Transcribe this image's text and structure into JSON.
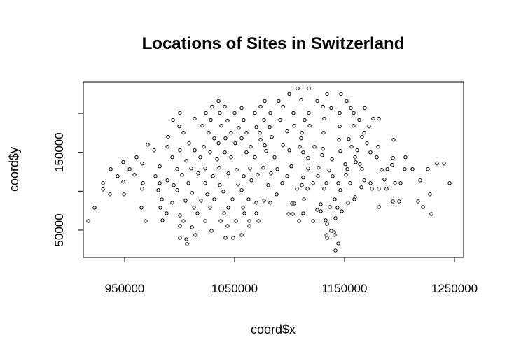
{
  "chart_data": {
    "type": "scatter",
    "title": "Locations of Sites in Switzerland",
    "x_label": "coord$x",
    "y_label": "coord$y",
    "xlim": [
      912400,
      1258300
    ],
    "ylim": [
      14900,
      240500
    ],
    "xticks": [
      950000,
      1050000,
      1150000,
      1250000
    ],
    "yticks": [
      50000,
      100000,
      150000,
      200000
    ],
    "color": "#000000",
    "marker": "open-circle",
    "x": [
      1107300,
      1117500,
      1099700,
      1134100,
      1146800,
      1110500,
      1035400,
      1077400,
      1090100,
      1125200,
      1151900,
      1029600,
      1041100,
      1056400,
      1073600,
      1094000,
      1130300,
      1137900,
      1155800,
      1023900,
      1036600,
      1082500,
      1103500,
      1117500,
      1145600,
      1158300,
      1168500,
      1000300,
      1050000,
      1068500,
      994000,
      1013700,
      1028400,
      1043600,
      1058300,
      1076800,
      1091400,
      1113700,
      1131500,
      1163400,
      1176100,
      1181200,
      999700,
      1020700,
      1037900,
      1053800,
      1069800,
      1081900,
      1104200,
      1118200,
      1145600,
      1158300,
      1172300,
      989500,
      1003500,
      1026400,
      1046800,
      1060800,
      1072900,
      1097800,
      1111200,
      1130900,
      1167900,
      1165900,
      1153800,
      1031500,
      1041700,
      1056400,
      1073600,
      1083800,
      1110500,
      1144900,
      971000,
      988900,
      1008600,
      1022000,
      1035400,
      1050600,
      1064700,
      1077400,
      1094000,
      1109300,
      1122600,
      1130300,
      1156400,
      1170400,
      1180600,
      1194600,
      976800,
      1000300,
      1013700,
      1027700,
      1041100,
      1060800,
      1078700,
      1099700,
      1112400,
      1146200,
      1161500,
      1173600,
      960800,
      993300,
      1006100,
      1018800,
      1034100,
      1046800,
      1068500,
      1086300,
      1116900,
      1129600,
      1138600,
      1159600,
      1179300,
      1194000,
      1205400,
      1160200,
      1164000,
      1150700,
      948700,
      965900,
      981900,
      997800,
      1010500,
      1023300,
      1036000,
      1051900,
      1064000,
      1076100,
      1088900,
      1101600,
      1116900,
      1126400,
      1136000,
      1152600,
      1165900,
      1183800,
      1188900,
      1193300,
      1204800,
      1211800,
      1225800,
      1234100,
      1240500,
      1245600,
      937300,
      954500,
      943600,
      958900,
      978000,
      988900,
      1002200,
      1016900,
      1030300,
      1044300,
      1058300,
      1071000,
      1083100,
      1097800,
      1112400,
      1125800,
      1139200,
      1151300,
      1167900,
      1186300,
      1195900,
      1201000,
      1218800,
      930300,
      948700,
      966600,
      981900,
      994600,
      1008000,
      1023300,
      1036600,
      1053200,
      1065300,
      1080600,
      1093300,
      1111200,
      1121400,
      1133500,
      1144300,
      1155100,
      1165300,
      1173600,
      1181200,
      1188200,
      936600,
      916900,
      930300,
      949400,
      965900,
      980600,
      997800,
      1011200,
      1025200,
      1039800,
      1056400,
      1088200,
      1106700,
      1116300,
      1131500,
      1146200,
      1159600,
      1174900,
      1227700,
      922600,
      983800,
      1005400,
      1019400,
      1031500,
      1048100,
      1062700,
      1076800,
      1104200,
      1113100,
      1128400,
      1141100,
      1153200,
      1158900,
      1181200,
      1194000,
      1199700,
      1216900,
      965300,
      982500,
      993300,
      1013100,
      1027700,
      1044300,
      1057700,
      1069800,
      1082500,
      1102200,
      1125200,
      1136600,
      1143600,
      1221400,
      988200,
      1000300,
      1016200,
      1040500,
      1058900,
      1069800,
      1099100,
      1102900,
      1112400,
      1128400,
      1147500,
      1229000,
      969100,
      984400,
      1003500,
      1023300,
      1037300,
      1051300,
      1063400,
      1071700,
      1108600,
      1121400,
      1132800,
      1141700,
      1000300,
      1011200,
      1029000,
      1043600,
      1063400,
      1134100,
      1137900,
      1140500,
      1056400,
      1000300,
      1006100,
      1014300,
      1041700,
      1048700,
      1133500,
      1134100,
      1141100,
      1144300,
      1141700,
      1006700
    ],
    "y": [
      232000,
      232000,
      224800,
      224800,
      224800,
      217600,
      215800,
      215800,
      215800,
      215800,
      215800,
      208600,
      208600,
      206800,
      208600,
      208600,
      208600,
      206800,
      206800,
      200500,
      200500,
      200500,
      200500,
      200500,
      200500,
      200500,
      206800,
      200500,
      200500,
      200500,
      191500,
      193300,
      191500,
      190600,
      191500,
      191500,
      191500,
      191500,
      193300,
      191500,
      193300,
      193300,
      183300,
      184200,
      184200,
      181500,
      182400,
      182400,
      184200,
      184200,
      183300,
      184200,
      183300,
      169800,
      175200,
      175200,
      175200,
      175200,
      175200,
      177000,
      175200,
      175200,
      175200,
      169800,
      167100,
      168000,
      168000,
      168000,
      166200,
      169800,
      168000,
      166200,
      159900,
      157200,
      161700,
      157200,
      161700,
      161700,
      157200,
      159000,
      159000,
      157200,
      157200,
      154500,
      157200,
      161700,
      157200,
      166200,
      152700,
      152700,
      152700,
      150000,
      150000,
      150000,
      151800,
      152700,
      150000,
      151800,
      152700,
      150000,
      143700,
      143700,
      139200,
      143700,
      141000,
      143700,
      143700,
      143700,
      142800,
      146400,
      141000,
      143700,
      143700,
      142800,
      143700,
      137400,
      134700,
      134700,
      137400,
      135600,
      132000,
      128400,
      129300,
      129300,
      130200,
      127500,
      129300,
      130200,
      128400,
      132000,
      129300,
      130200,
      126600,
      128400,
      128400,
      127500,
      128400,
      133800,
      128400,
      128400,
      128400,
      135600,
      135600,
      110400,
      128400,
      128400,
      119400,
      121200,
      119400,
      114000,
      121200,
      123000,
      119400,
      123000,
      119400,
      121200,
      123000,
      119400,
      117600,
      119400,
      119400,
      121200,
      114000,
      114900,
      110400,
      110400,
      114000,
      110400,
      112200,
      110400,
      110400,
      107700,
      110400,
      110400,
      107700,
      108600,
      114000,
      107700,
      110400,
      107700,
      110400,
      110400,
      110400,
      110400,
      105000,
      110400,
      103200,
      103200,
      96000,
      61700,
      102300,
      96000,
      103200,
      101400,
      101400,
      97800,
      96000,
      99600,
      101400,
      96000,
      103200,
      103200,
      103200,
      101400,
      92300,
      103200,
      96000,
      78800,
      89600,
      87800,
      87800,
      89600,
      89600,
      89600,
      87800,
      84200,
      89600,
      83300,
      89600,
      85100,
      89600,
      79700,
      86900,
      86900,
      86900,
      78800,
      78800,
      85100,
      78800,
      78800,
      78800,
      78800,
      85100,
      85100,
      84200,
      76100,
      79700,
      78800,
      79700,
      71600,
      68900,
      71600,
      71600,
      71600,
      71600,
      70700,
      70700,
      71600,
      74300,
      74300,
      70700,
      61700,
      62600,
      61700,
      61700,
      61700,
      61700,
      61700,
      61700,
      61700,
      61700,
      62600,
      65300,
      55400,
      53600,
      49100,
      55400,
      55400,
      58100,
      49100,
      47300,
      43700,
      40100,
      38300,
      43700,
      40100,
      40100,
      43700,
      40100,
      43700,
      32900,
      23900,
      32000
    ]
  }
}
